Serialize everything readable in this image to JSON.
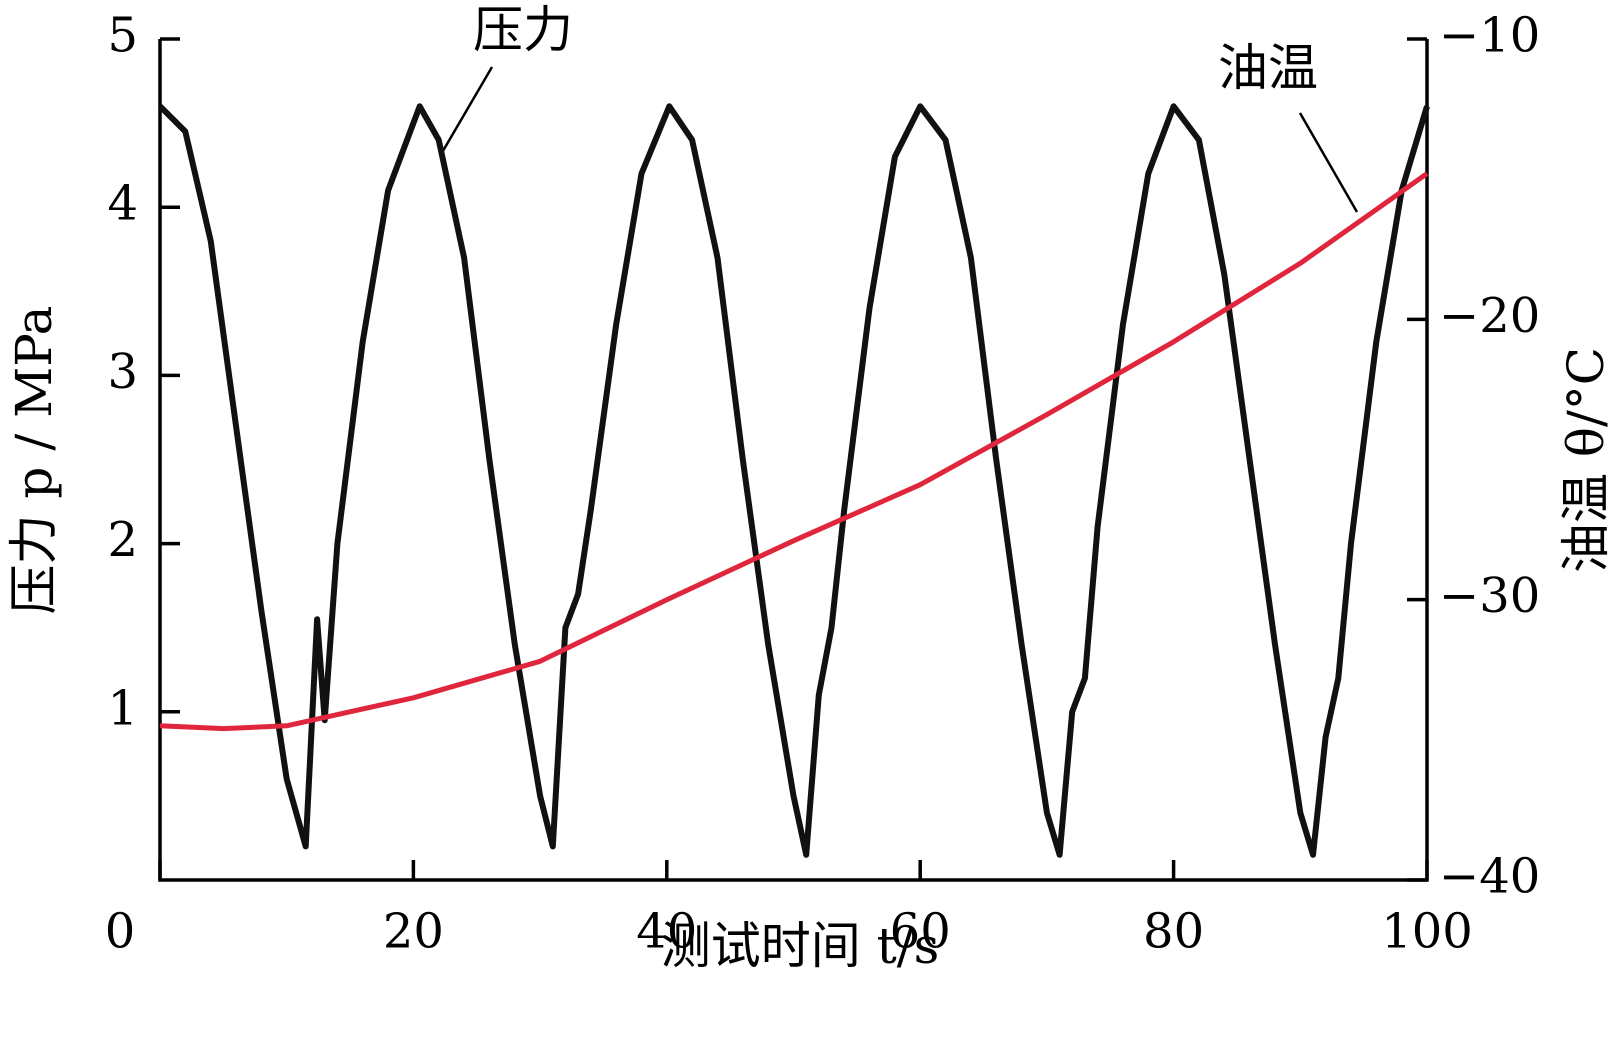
{
  "chart_data": {
    "type": "line",
    "x_label": "测试时间 t/s",
    "y_label": "压力 p / MPa",
    "y2_label": "油温 θ/°C",
    "annotations": [
      "压力",
      "油温"
    ],
    "xlim": [
      0,
      100
    ],
    "xticks": [
      0,
      20,
      40,
      60,
      80,
      100
    ],
    "ylim": [
      0,
      5
    ],
    "yticks": [
      1,
      2,
      3,
      4,
      5
    ],
    "y2lim": [
      -40,
      -10
    ],
    "y2ticks": [
      {
        "value": -40,
        "label": "−40"
      },
      {
        "value": -30,
        "label": "−30"
      },
      {
        "value": -20,
        "label": "−20"
      },
      {
        "value": -10,
        "label": "−10"
      }
    ],
    "series": [
      {
        "name": "压力",
        "color": "#111111",
        "x": [
          0,
          2,
          4,
          6,
          8,
          10,
          11.5,
          12.4,
          13,
          14,
          16,
          18,
          20.5,
          22,
          24,
          26,
          28,
          30,
          31,
          32,
          33,
          34,
          36,
          38,
          40.2,
          42,
          44,
          46,
          48,
          50,
          51,
          52,
          53,
          54,
          56,
          58,
          60,
          62,
          64,
          66,
          68,
          70,
          71,
          72,
          73,
          74,
          76,
          78,
          80,
          82,
          84,
          86,
          88,
          90,
          91,
          92,
          93,
          94,
          96,
          98,
          100
        ],
        "values": [
          4.6,
          4.45,
          3.8,
          2.7,
          1.6,
          0.6,
          0.2,
          1.55,
          0.95,
          2.0,
          3.2,
          4.1,
          4.6,
          4.4,
          3.7,
          2.5,
          1.4,
          0.5,
          0.2,
          1.5,
          1.7,
          2.2,
          3.3,
          4.2,
          4.6,
          4.4,
          3.7,
          2.5,
          1.4,
          0.5,
          0.15,
          1.1,
          1.5,
          2.2,
          3.4,
          4.3,
          4.6,
          4.4,
          3.7,
          2.5,
          1.4,
          0.4,
          0.15,
          1.0,
          1.2,
          2.1,
          3.3,
          4.2,
          4.6,
          4.4,
          3.6,
          2.5,
          1.4,
          0.4,
          0.15,
          0.85,
          1.2,
          2.0,
          3.2,
          4.1,
          4.6
        ]
      },
      {
        "name": "油温",
        "color": "#e0263c",
        "axis": "y2",
        "x": [
          0,
          5,
          10,
          20,
          30,
          40,
          50,
          60,
          70,
          80,
          90,
          100
        ],
        "values": [
          -34.5,
          -34.6,
          -34.5,
          -33.5,
          -32.2,
          -30.0,
          -27.9,
          -25.9,
          -23.4,
          -20.8,
          -18.0,
          -14.8
        ]
      }
    ]
  }
}
